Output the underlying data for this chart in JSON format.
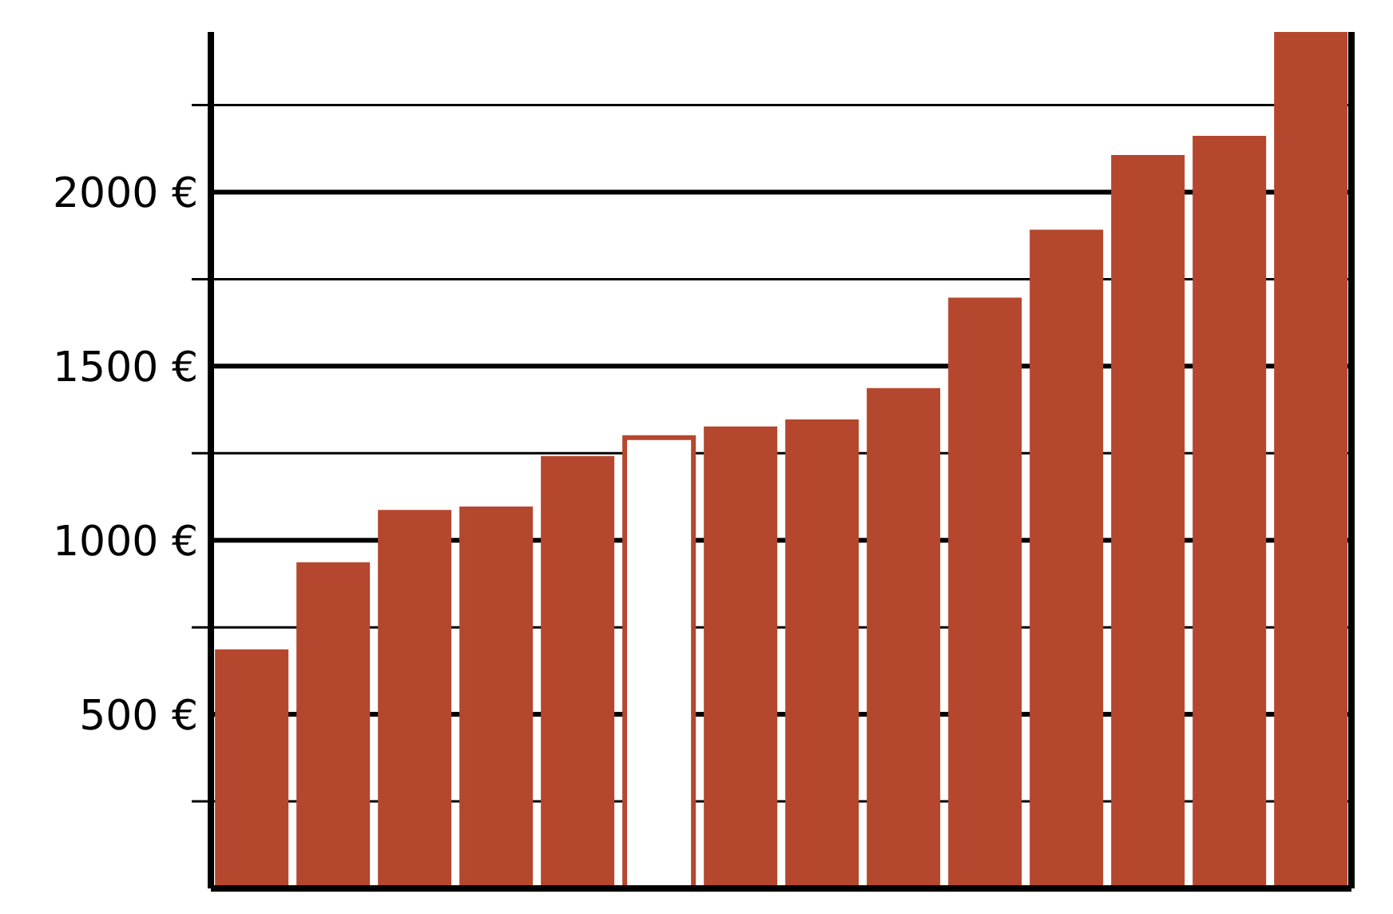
{
  "chart_data": {
    "type": "bar",
    "categories": [
      null,
      null,
      null,
      null,
      null,
      null,
      null,
      null,
      null,
      null,
      null,
      null,
      null,
      null
    ],
    "values": [
      680,
      930,
      1080,
      1090,
      1235,
      1295,
      1320,
      1340,
      1430,
      1690,
      1885,
      2100,
      2155,
      2455
    ],
    "color": "#b5472e",
    "colors": [
      "#b5472e",
      "#b5472e",
      "#b5472e",
      "#b5472e",
      "#b5472e",
      "#ffffff",
      "#b5472e",
      "#b5472e",
      "#b5472e",
      "#b5472e",
      "#b5472e",
      "#b5472e",
      "#b5472e",
      "#b5472e"
    ],
    "ylim": [
      0,
      2460
    ],
    "yticks": [
      {
        "value": 250,
        "label": null
      },
      {
        "value": 500,
        "label": "500 €"
      },
      {
        "value": 750,
        "label": null
      },
      {
        "value": 1000,
        "label": "1000 €"
      },
      {
        "value": 1250,
        "label": null
      },
      {
        "value": 1500,
        "label": "1500 €"
      },
      {
        "value": 1750,
        "label": null
      },
      {
        "value": 2000,
        "label": "2000 €"
      },
      {
        "value": 2250,
        "label": null
      }
    ],
    "grid": "y",
    "tick_labels": "y"
  }
}
